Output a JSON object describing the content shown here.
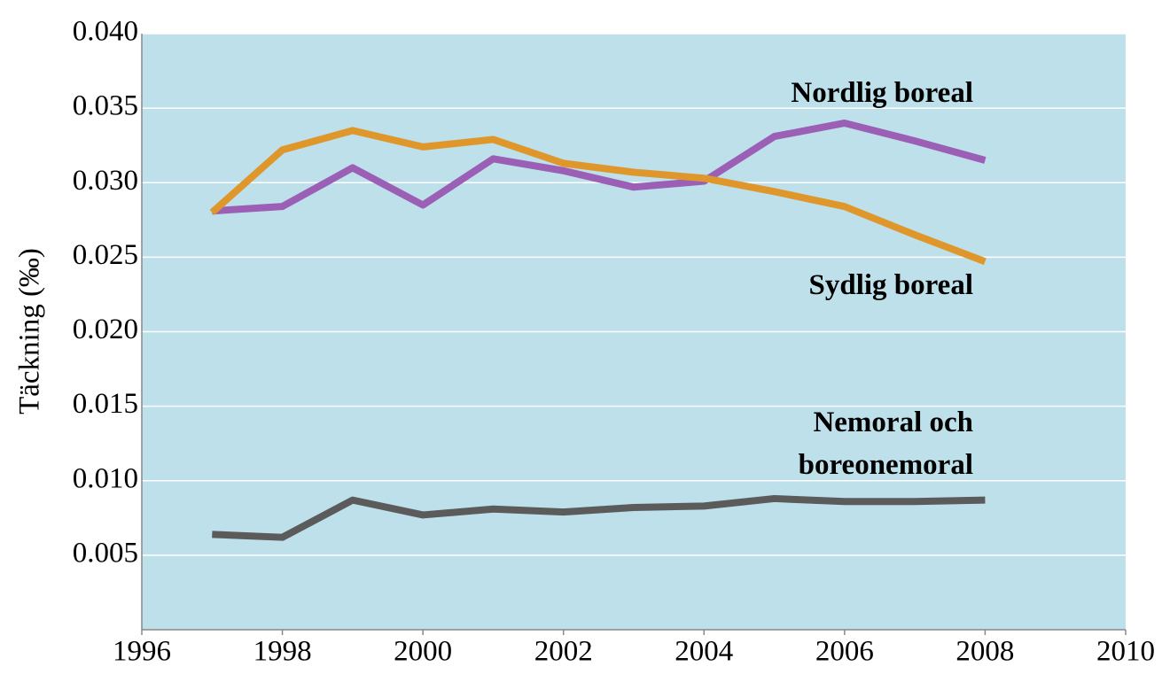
{
  "chart_data": {
    "type": "line",
    "y_label": "Täckning (‰)",
    "x": [
      1997,
      1998,
      1999,
      2000,
      2001,
      2002,
      2003,
      2004,
      2005,
      2006,
      2007,
      2008
    ],
    "series": [
      {
        "name": "Nordlig boreal",
        "color": "#9b5fb5",
        "values": [
          0.0281,
          0.0284,
          0.031,
          0.0285,
          0.0316,
          0.0308,
          0.0297,
          0.0301,
          0.0331,
          0.034,
          0.0328,
          0.0315
        ]
      },
      {
        "name": "Sydlig boreal",
        "color": "#df972c",
        "values": [
          0.028,
          0.0322,
          0.0335,
          0.0324,
          0.0329,
          0.0313,
          0.0307,
          0.0303,
          0.0294,
          0.0284,
          0.0265,
          0.0247
        ]
      },
      {
        "name": "Nemoral och boreonemoral",
        "color": "#5b5b5b",
        "values": [
          0.0064,
          0.0062,
          0.0087,
          0.0077,
          0.0081,
          0.0079,
          0.0082,
          0.0083,
          0.0088,
          0.0086,
          0.0086,
          0.0087
        ]
      }
    ],
    "xlim": [
      1996,
      2010
    ],
    "xticks": [
      1996,
      1998,
      2000,
      2002,
      2004,
      2006,
      2008,
      2010
    ],
    "ylim": [
      0,
      0.04
    ],
    "yticks": [
      0.005,
      {
        "value": 0.01,
        "label": "0.010"
      },
      0.015,
      {
        "value": 0.02,
        "label": "0.020"
      },
      0.025,
      {
        "value": 0.03,
        "label": "0.030"
      },
      0.035,
      {
        "value": 0.04,
        "label": "0.040"
      }
    ],
    "grid": true,
    "background": "#bde0eb"
  }
}
